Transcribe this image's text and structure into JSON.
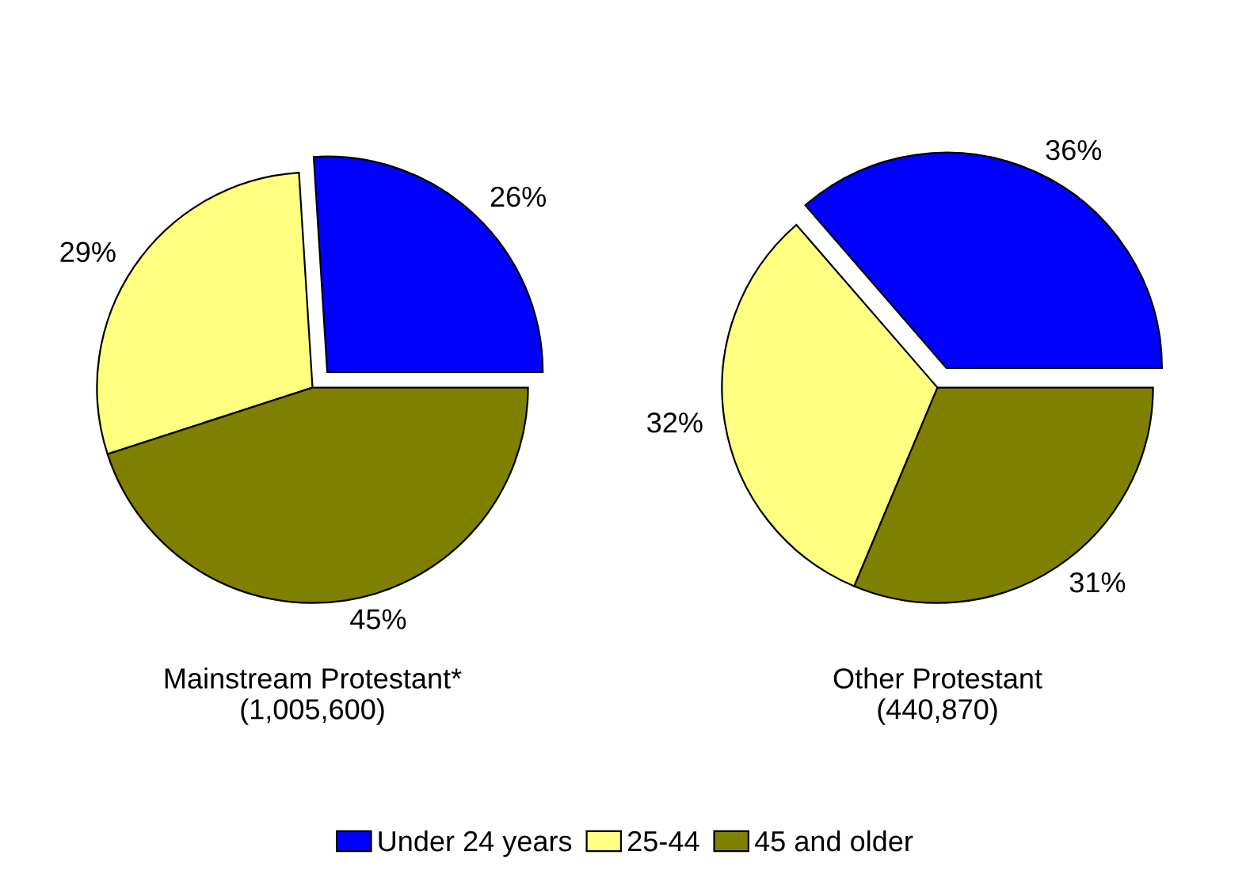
{
  "chart_data": [
    {
      "type": "pie",
      "title": "Mainstream Protestant*\n(1,005,600)",
      "categories": [
        "Under 24 years",
        "25-44",
        "45 and older"
      ],
      "values": [
        26,
        29,
        45
      ],
      "value_labels": [
        "26%",
        "29%",
        "45%"
      ],
      "colors": [
        "#0000ff",
        "#ffff80",
        "#808000"
      ],
      "legend": "bottom"
    },
    {
      "type": "pie",
      "title": "Other Protestant\n(440,870)",
      "categories": [
        null,
        null,
        null
      ],
      "values": [
        36,
        32,
        31
      ],
      "value_labels": [
        "36%",
        "32%",
        "31%"
      ],
      "colors": [
        "#0000ff",
        "#ffff80",
        "#808000"
      ]
    }
  ]
}
